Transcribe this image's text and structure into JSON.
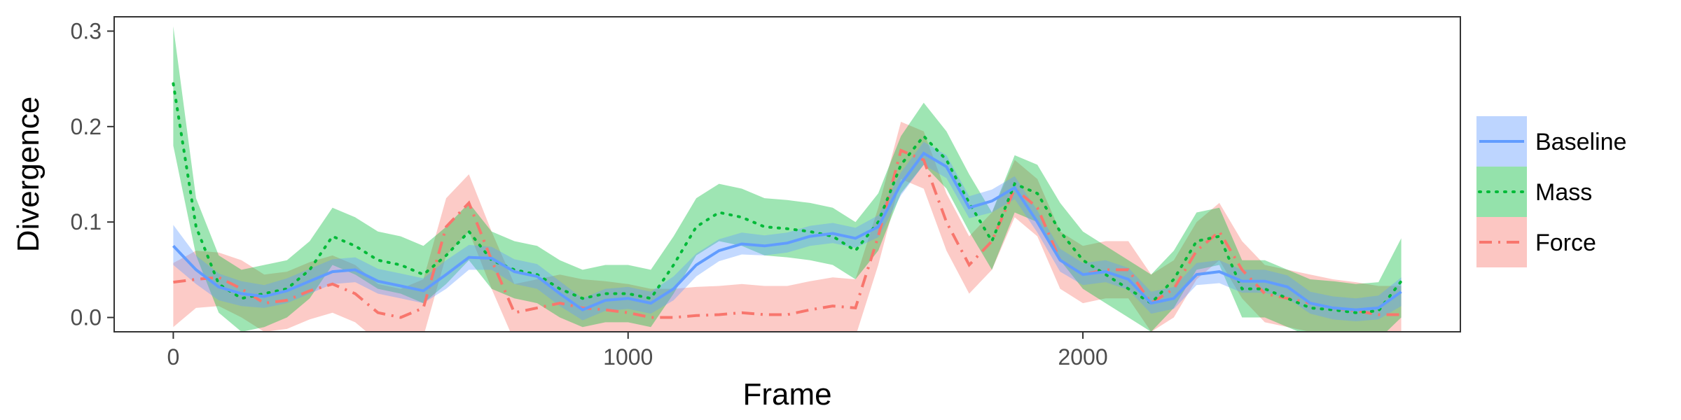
{
  "chart_data": {
    "type": "line",
    "xlabel": "Frame",
    "ylabel": "Divergence",
    "xlim": [
      -130,
      2830
    ],
    "ylim": [
      -0.015,
      0.315
    ],
    "xticks": [
      0,
      1000,
      2000
    ],
    "yticks": [
      0.0,
      0.1,
      0.2,
      0.3
    ],
    "xtick_labels": [
      "0",
      "1000",
      "2000"
    ],
    "ytick_labels": [
      "0.0",
      "0.1",
      "0.2",
      "0.3"
    ],
    "grid": false,
    "legend_position": "right",
    "x": [
      0,
      50,
      100,
      150,
      200,
      250,
      300,
      350,
      400,
      450,
      500,
      550,
      600,
      650,
      700,
      750,
      800,
      850,
      900,
      950,
      1000,
      1050,
      1100,
      1150,
      1200,
      1250,
      1300,
      1350,
      1400,
      1450,
      1500,
      1550,
      1600,
      1650,
      1700,
      1750,
      1800,
      1850,
      1900,
      1950,
      2000,
      2050,
      2100,
      2150,
      2200,
      2250,
      2300,
      2350,
      2400,
      2450,
      2500,
      2550,
      2600,
      2650,
      2700
    ],
    "series": [
      {
        "name": "Baseline",
        "color": "#619CFF",
        "dash": "solid",
        "values": [
          0.075,
          0.05,
          0.032,
          0.025,
          0.022,
          0.028,
          0.038,
          0.048,
          0.05,
          0.038,
          0.033,
          0.028,
          0.045,
          0.063,
          0.062,
          0.048,
          0.043,
          0.025,
          0.008,
          0.018,
          0.02,
          0.015,
          0.03,
          0.055,
          0.07,
          0.077,
          0.075,
          0.078,
          0.085,
          0.088,
          0.083,
          0.095,
          0.14,
          0.172,
          0.158,
          0.115,
          0.122,
          0.136,
          0.1,
          0.06,
          0.045,
          0.048,
          0.04,
          0.015,
          0.02,
          0.045,
          0.048,
          0.038,
          0.038,
          0.032,
          0.015,
          0.01,
          0.008,
          0.01,
          0.027
        ],
        "lower": [
          0.055,
          0.035,
          0.018,
          0.012,
          0.01,
          0.015,
          0.025,
          0.035,
          0.037,
          0.025,
          0.02,
          0.015,
          0.03,
          0.05,
          0.05,
          0.035,
          0.03,
          0.012,
          -0.003,
          0.007,
          0.009,
          0.004,
          0.018,
          0.043,
          0.059,
          0.066,
          0.065,
          0.068,
          0.075,
          0.078,
          0.073,
          0.084,
          0.128,
          0.16,
          0.146,
          0.104,
          0.11,
          0.124,
          0.089,
          0.048,
          0.034,
          0.037,
          0.029,
          0.004,
          0.009,
          0.034,
          0.036,
          0.026,
          0.026,
          0.02,
          0.004,
          -0.002,
          -0.004,
          -0.002,
          0.012
        ],
        "upper": [
          0.097,
          0.065,
          0.046,
          0.038,
          0.034,
          0.041,
          0.051,
          0.061,
          0.063,
          0.051,
          0.046,
          0.041,
          0.06,
          0.076,
          0.074,
          0.061,
          0.056,
          0.038,
          0.02,
          0.03,
          0.032,
          0.027,
          0.043,
          0.067,
          0.082,
          0.089,
          0.086,
          0.089,
          0.096,
          0.099,
          0.094,
          0.107,
          0.152,
          0.184,
          0.17,
          0.127,
          0.134,
          0.148,
          0.112,
          0.072,
          0.057,
          0.06,
          0.052,
          0.027,
          0.032,
          0.057,
          0.06,
          0.05,
          0.05,
          0.044,
          0.027,
          0.022,
          0.02,
          0.023,
          0.042
        ]
      },
      {
        "name": "Mass",
        "color": "#00BA38",
        "dash": "dotted",
        "values": [
          0.245,
          0.095,
          0.035,
          0.02,
          0.025,
          0.03,
          0.05,
          0.085,
          0.075,
          0.06,
          0.055,
          0.045,
          0.065,
          0.09,
          0.06,
          0.05,
          0.045,
          0.03,
          0.02,
          0.025,
          0.025,
          0.02,
          0.055,
          0.095,
          0.11,
          0.105,
          0.095,
          0.093,
          0.09,
          0.085,
          0.07,
          0.1,
          0.16,
          0.19,
          0.165,
          0.12,
          0.08,
          0.14,
          0.13,
          0.09,
          0.06,
          0.045,
          0.03,
          0.015,
          0.04,
          0.08,
          0.085,
          0.03,
          0.03,
          0.02,
          0.01,
          0.008,
          0.005,
          0.007,
          0.038
        ],
        "lower": [
          0.18,
          0.065,
          0.005,
          -0.015,
          -0.01,
          0.0,
          0.02,
          0.055,
          0.045,
          0.03,
          0.025,
          0.015,
          0.035,
          0.06,
          0.03,
          0.02,
          0.015,
          0.0,
          -0.01,
          -0.005,
          -0.005,
          -0.01,
          0.025,
          0.065,
          0.08,
          0.075,
          0.065,
          0.063,
          0.06,
          0.055,
          0.04,
          0.07,
          0.13,
          0.16,
          0.135,
          0.09,
          0.05,
          0.11,
          0.1,
          0.06,
          0.03,
          0.015,
          0.0,
          -0.015,
          0.01,
          0.05,
          0.055,
          0.0,
          0.0,
          -0.01,
          -0.02,
          -0.022,
          -0.025,
          -0.023,
          0.0
        ],
        "upper": [
          0.305,
          0.125,
          0.065,
          0.05,
          0.055,
          0.06,
          0.08,
          0.115,
          0.105,
          0.09,
          0.085,
          0.075,
          0.095,
          0.12,
          0.09,
          0.08,
          0.075,
          0.06,
          0.05,
          0.055,
          0.055,
          0.05,
          0.085,
          0.125,
          0.14,
          0.135,
          0.125,
          0.123,
          0.12,
          0.115,
          0.1,
          0.13,
          0.19,
          0.225,
          0.195,
          0.15,
          0.11,
          0.17,
          0.16,
          0.12,
          0.09,
          0.075,
          0.06,
          0.045,
          0.07,
          0.11,
          0.115,
          0.06,
          0.06,
          0.05,
          0.04,
          0.038,
          0.035,
          0.037,
          0.083
        ]
      },
      {
        "name": "Force",
        "color": "#F8766D",
        "dash": "dashdot",
        "values": [
          0.037,
          0.04,
          0.042,
          0.03,
          0.015,
          0.018,
          0.028,
          0.035,
          0.025,
          0.005,
          0.0,
          0.01,
          0.095,
          0.12,
          0.06,
          0.005,
          0.01,
          0.015,
          0.01,
          0.008,
          0.005,
          0.0,
          0.0,
          0.002,
          0.003,
          0.005,
          0.003,
          0.003,
          0.008,
          0.012,
          0.01,
          0.085,
          0.175,
          0.165,
          0.1,
          0.055,
          0.08,
          0.135,
          0.115,
          0.06,
          0.045,
          0.05,
          0.05,
          0.015,
          0.03,
          0.07,
          0.09,
          0.05,
          0.025,
          0.02,
          0.015,
          0.01,
          0.007,
          0.003,
          0.003
        ],
        "lower": [
          -0.01,
          0.01,
          0.012,
          0.0,
          -0.015,
          -0.012,
          -0.002,
          0.005,
          -0.005,
          -0.025,
          -0.03,
          -0.02,
          0.065,
          0.09,
          0.03,
          -0.025,
          -0.02,
          -0.015,
          -0.02,
          -0.022,
          -0.025,
          -0.03,
          -0.03,
          -0.028,
          -0.027,
          -0.025,
          -0.027,
          -0.027,
          -0.022,
          -0.018,
          -0.02,
          0.055,
          0.145,
          0.135,
          0.07,
          0.025,
          0.05,
          0.105,
          0.085,
          0.03,
          0.015,
          0.02,
          0.02,
          -0.015,
          0.0,
          0.04,
          0.06,
          0.02,
          -0.005,
          -0.01,
          -0.015,
          -0.02,
          -0.023,
          -0.027,
          -0.027
        ],
        "upper": [
          0.057,
          0.07,
          0.068,
          0.06,
          0.045,
          0.048,
          0.058,
          0.065,
          0.055,
          0.035,
          0.03,
          0.04,
          0.125,
          0.15,
          0.09,
          0.035,
          0.04,
          0.045,
          0.04,
          0.038,
          0.035,
          0.03,
          0.03,
          0.032,
          0.033,
          0.035,
          0.033,
          0.033,
          0.038,
          0.042,
          0.04,
          0.115,
          0.205,
          0.195,
          0.13,
          0.085,
          0.11,
          0.165,
          0.145,
          0.09,
          0.075,
          0.08,
          0.08,
          0.045,
          0.06,
          0.1,
          0.12,
          0.08,
          0.055,
          0.05,
          0.045,
          0.04,
          0.037,
          0.033,
          0.033
        ]
      }
    ]
  }
}
